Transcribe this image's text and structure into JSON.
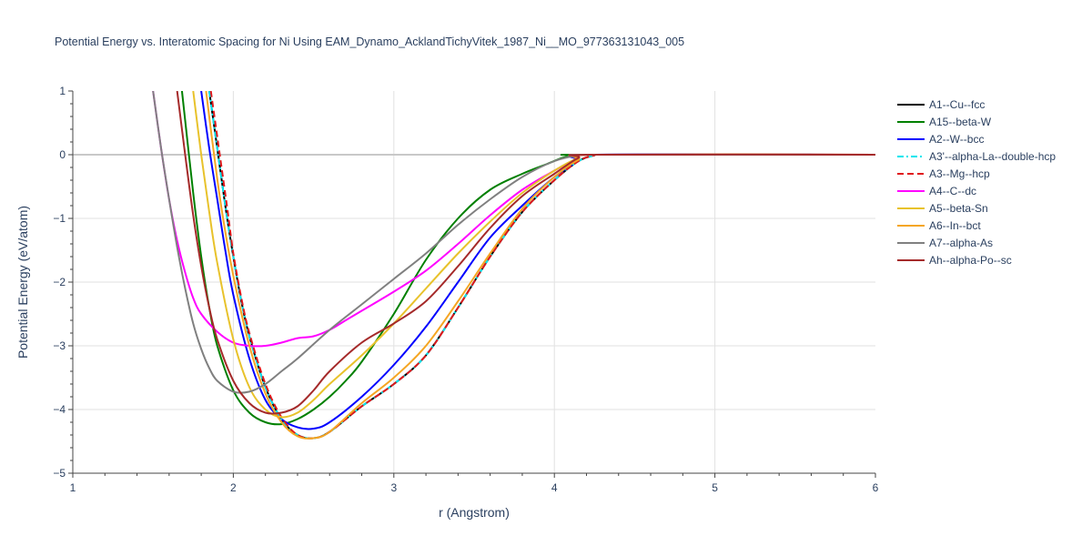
{
  "chart_data": {
    "type": "line",
    "title": "Potential Energy vs. Interatomic Spacing for Ni Using EAM_Dynamo_AcklandTichyVitek_1987_Ni__MO_977363131043_005",
    "xlabel": "r (Angstrom)",
    "ylabel": "Potential Energy (eV/atom)",
    "xlim": [
      1,
      6
    ],
    "ylim": [
      -5,
      1
    ],
    "xticks": [
      "1",
      "2",
      "3",
      "4",
      "5",
      "6"
    ],
    "yticks": [
      "1",
      "0",
      "−1",
      "−2",
      "−3",
      "−4",
      "−5"
    ],
    "grid": true,
    "legend_position": "right",
    "series": [
      {
        "name": "A1--Cu--fcc",
        "color": "#000000",
        "dash": "solid",
        "x": [
          1.85,
          1.9,
          1.95,
          2.0,
          2.05,
          2.1,
          2.2,
          2.3,
          2.4,
          2.5,
          2.6,
          2.8,
          3.0,
          3.2,
          3.4,
          3.6,
          3.8,
          4.0,
          4.15,
          4.25,
          4.3,
          6.0
        ],
        "y": [
          1.0,
          0.1,
          -0.8,
          -1.6,
          -2.3,
          -2.85,
          -3.65,
          -4.15,
          -4.4,
          -4.45,
          -4.35,
          -3.95,
          -3.6,
          -3.15,
          -2.4,
          -1.6,
          -0.9,
          -0.4,
          -0.1,
          -0.01,
          0,
          0
        ]
      },
      {
        "name": "A15--beta-W",
        "color": "#008000",
        "dash": "solid",
        "x": [
          1.68,
          1.75,
          1.8,
          1.85,
          1.9,
          2.0,
          2.1,
          2.2,
          2.3,
          2.4,
          2.5,
          2.6,
          2.7,
          2.8,
          3.0,
          3.2,
          3.4,
          3.6,
          3.8,
          3.95,
          4.05,
          4.12,
          4.2,
          6.0
        ],
        "y": [
          1.0,
          -0.6,
          -1.6,
          -2.4,
          -3.0,
          -3.7,
          -4.05,
          -4.2,
          -4.23,
          -4.15,
          -4.0,
          -3.8,
          -3.55,
          -3.25,
          -2.5,
          -1.65,
          -1.0,
          -0.55,
          -0.3,
          -0.15,
          -0.05,
          -0.01,
          0,
          0
        ]
      },
      {
        "name": "A2--W--bcc",
        "color": "#0000ff",
        "dash": "solid",
        "x": [
          1.8,
          1.85,
          1.9,
          1.95,
          2.0,
          2.1,
          2.2,
          2.3,
          2.4,
          2.5,
          2.6,
          2.8,
          3.0,
          3.2,
          3.4,
          3.6,
          3.8,
          4.0,
          4.15,
          4.25,
          6.0
        ],
        "y": [
          1.0,
          0.1,
          -0.7,
          -1.5,
          -2.2,
          -3.2,
          -3.85,
          -4.15,
          -4.28,
          -4.3,
          -4.2,
          -3.8,
          -3.3,
          -2.7,
          -2.0,
          -1.3,
          -0.8,
          -0.35,
          -0.1,
          0,
          0
        ]
      },
      {
        "name": "A3'--alpha-La--double-hcp",
        "color": "#00e5ee",
        "dash": "dashdot",
        "x": [
          1.85,
          1.9,
          1.95,
          2.0,
          2.05,
          2.1,
          2.2,
          2.3,
          2.4,
          2.5,
          2.6,
          2.8,
          3.0,
          3.2,
          3.4,
          3.6,
          3.8,
          4.0,
          4.15,
          4.25,
          4.3,
          6.0
        ],
        "y": [
          1.0,
          0.1,
          -0.8,
          -1.6,
          -2.3,
          -2.85,
          -3.65,
          -4.15,
          -4.4,
          -4.45,
          -4.35,
          -3.95,
          -3.6,
          -3.15,
          -2.4,
          -1.6,
          -0.9,
          -0.4,
          -0.1,
          -0.01,
          0,
          0
        ]
      },
      {
        "name": "A3--Mg--hcp",
        "color": "#e0191c",
        "dash": "dash",
        "x": [
          1.86,
          1.91,
          1.96,
          2.0,
          2.05,
          2.1,
          2.2,
          2.3,
          2.4,
          2.5,
          2.6,
          2.8,
          3.0,
          3.2,
          3.4,
          3.6,
          3.8,
          4.0,
          4.15,
          4.25,
          4.3,
          6.0
        ],
        "y": [
          1.0,
          0.1,
          -0.8,
          -1.55,
          -2.25,
          -2.8,
          -3.6,
          -4.12,
          -4.4,
          -4.45,
          -4.35,
          -3.95,
          -3.6,
          -3.15,
          -2.4,
          -1.6,
          -0.9,
          -0.4,
          -0.1,
          -0.01,
          0,
          0
        ]
      },
      {
        "name": "A4--C--dc",
        "color": "#ff00ff",
        "dash": "solid",
        "x": [
          1.5,
          1.55,
          1.6,
          1.65,
          1.7,
          1.75,
          1.8,
          1.9,
          2.0,
          2.1,
          2.2,
          2.3,
          2.4,
          2.5,
          2.6,
          2.7,
          2.8,
          3.0,
          3.2,
          3.4,
          3.6,
          3.8,
          4.0,
          4.15,
          4.25,
          6.0
        ],
        "y": [
          1.0,
          0.1,
          -0.7,
          -1.35,
          -1.85,
          -2.25,
          -2.5,
          -2.78,
          -2.95,
          -3.0,
          -3.0,
          -2.95,
          -2.88,
          -2.85,
          -2.75,
          -2.6,
          -2.45,
          -2.15,
          -1.82,
          -1.4,
          -0.95,
          -0.55,
          -0.25,
          -0.05,
          0,
          0
        ]
      },
      {
        "name": "A5--beta-Sn",
        "color": "#e8c22b",
        "dash": "solid",
        "x": [
          1.75,
          1.8,
          1.85,
          1.9,
          2.0,
          2.1,
          2.2,
          2.3,
          2.4,
          2.5,
          2.6,
          2.8,
          3.0,
          3.2,
          3.4,
          3.6,
          3.8,
          4.0,
          4.15,
          4.25,
          6.0
        ],
        "y": [
          1.0,
          0.0,
          -0.9,
          -1.7,
          -2.9,
          -3.65,
          -4.0,
          -4.12,
          -4.05,
          -3.85,
          -3.6,
          -3.15,
          -2.65,
          -2.1,
          -1.55,
          -1.05,
          -0.6,
          -0.25,
          -0.05,
          0,
          0
        ]
      },
      {
        "name": "A6--In--bct",
        "color": "#f5a623",
        "dash": "solid",
        "x": [
          1.83,
          1.88,
          1.93,
          2.0,
          2.1,
          2.2,
          2.3,
          2.4,
          2.5,
          2.6,
          2.8,
          3.0,
          3.2,
          3.4,
          3.6,
          3.8,
          4.0,
          4.15,
          4.25,
          6.0
        ],
        "y": [
          1.0,
          0.0,
          -0.9,
          -1.9,
          -3.0,
          -3.75,
          -4.2,
          -4.42,
          -4.45,
          -4.35,
          -3.9,
          -3.5,
          -3.0,
          -2.3,
          -1.55,
          -0.85,
          -0.35,
          -0.08,
          0,
          0
        ]
      },
      {
        "name": "A7--alpha-As",
        "color": "#808080",
        "dash": "solid",
        "x": [
          1.5,
          1.55,
          1.6,
          1.65,
          1.7,
          1.75,
          1.8,
          1.85,
          1.9,
          2.0,
          2.1,
          2.2,
          2.3,
          2.4,
          2.6,
          2.8,
          3.0,
          3.2,
          3.4,
          3.6,
          3.8,
          4.0,
          4.15,
          4.25,
          6.0
        ],
        "y": [
          1.0,
          0.1,
          -0.7,
          -1.45,
          -2.1,
          -2.65,
          -3.05,
          -3.35,
          -3.55,
          -3.72,
          -3.72,
          -3.6,
          -3.4,
          -3.2,
          -2.75,
          -2.35,
          -1.95,
          -1.55,
          -1.1,
          -0.7,
          -0.35,
          -0.1,
          -0.01,
          0,
          0
        ]
      },
      {
        "name": "Ah--alpha-Po--sc",
        "color": "#a52a2a",
        "dash": "solid",
        "x": [
          1.65,
          1.7,
          1.75,
          1.8,
          1.85,
          1.9,
          2.0,
          2.1,
          2.2,
          2.3,
          2.4,
          2.5,
          2.6,
          2.8,
          3.0,
          3.2,
          3.4,
          3.6,
          3.8,
          4.0,
          4.15,
          4.25,
          6.0
        ],
        "y": [
          1.0,
          0.0,
          -0.95,
          -1.75,
          -2.4,
          -2.9,
          -3.55,
          -3.9,
          -4.05,
          -4.05,
          -3.95,
          -3.7,
          -3.4,
          -2.95,
          -2.65,
          -2.3,
          -1.75,
          -1.15,
          -0.65,
          -0.3,
          -0.05,
          0,
          0
        ]
      }
    ]
  }
}
